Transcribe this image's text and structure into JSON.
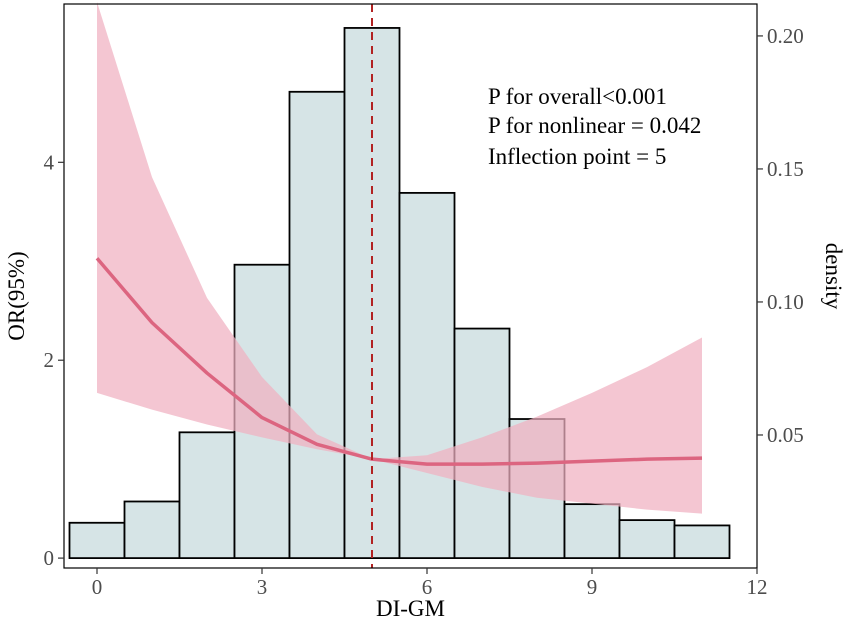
{
  "chart_data": {
    "type": "bar+line",
    "xlabel": "DI-GM",
    "ylabel_left": "OR(95%)",
    "ylabel_right": "density",
    "xlim": [
      -0.6,
      12.0
    ],
    "x_ticks": [
      0,
      3,
      6,
      9,
      12
    ],
    "ylim_left": [
      -0.1,
      5.6
    ],
    "y_ticks_left": [
      0,
      2,
      4
    ],
    "ylim_right": [
      0.0,
      0.212
    ],
    "y_ticks_right": [
      0.05,
      0.1,
      0.15,
      0.2
    ],
    "histogram": {
      "name": "density",
      "bin_width": 1,
      "bin_centers": [
        0,
        1,
        2,
        3,
        4,
        5,
        6,
        7,
        8,
        9,
        10,
        11
      ],
      "values": [
        0.017,
        0.025,
        0.051,
        0.114,
        0.179,
        0.203,
        0.141,
        0.09,
        0.056,
        0.024,
        0.018,
        0.016
      ],
      "fill": "#d6e4e6",
      "stroke": "#000000"
    },
    "or_curve": {
      "name": "OR",
      "x": [
        0,
        1,
        2,
        3,
        4,
        5,
        6,
        7,
        8,
        9,
        10,
        11
      ],
      "y": [
        3.03,
        2.38,
        1.87,
        1.42,
        1.15,
        1.0,
        0.95,
        0.95,
        0.96,
        0.98,
        1.0,
        1.01
      ],
      "color": "#dc6580"
    },
    "ci_band": {
      "name": "95% CI",
      "x": [
        0,
        1,
        2,
        3,
        4,
        5,
        6,
        7,
        8,
        9,
        10,
        11
      ],
      "lower": [
        1.67,
        1.5,
        1.35,
        1.22,
        1.1,
        1.0,
        0.86,
        0.72,
        0.61,
        0.55,
        0.49,
        0.45
      ],
      "upper": [
        5.62,
        3.85,
        2.63,
        1.83,
        1.25,
        1.0,
        1.04,
        1.22,
        1.43,
        1.67,
        1.93,
        2.23
      ],
      "color": "#f0b0c0"
    },
    "vline": {
      "x": 5,
      "color": "#b22222",
      "style": "dashed"
    },
    "annotations": [
      "P for overall<0.001",
      "P for nonlinear = 0.042",
      "Inflection point = 5"
    ]
  }
}
